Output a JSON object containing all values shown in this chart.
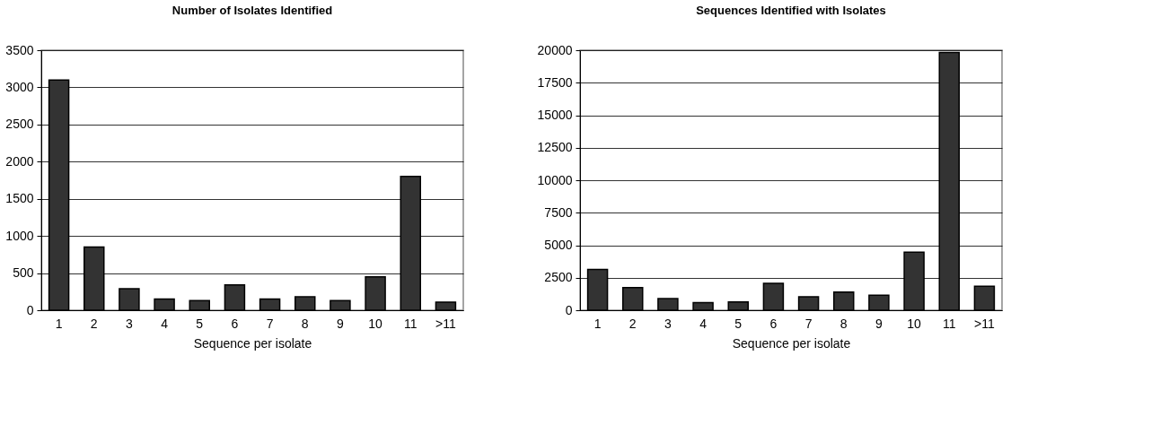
{
  "chart_data": [
    {
      "type": "bar",
      "title": "Number of Isolates Identified",
      "xlabel": "Sequence per isolate",
      "categories": [
        "1",
        "2",
        "3",
        "4",
        "5",
        "6",
        "7",
        "8",
        "9",
        "10",
        "11",
        ">11"
      ],
      "values": [
        3100,
        850,
        290,
        150,
        130,
        340,
        150,
        180,
        130,
        450,
        1800,
        110
      ],
      "color": "#333333",
      "ylim": [
        0,
        3500
      ],
      "yticks": [
        0,
        500,
        1000,
        1500,
        2000,
        2500,
        3000,
        3500
      ],
      "grid": "y"
    },
    {
      "type": "bar",
      "title": "Sequences Identified with Isolates",
      "xlabel": "Sequence per isolate",
      "categories": [
        "1",
        "2",
        "3",
        "4",
        "5",
        "6",
        "7",
        "8",
        "9",
        "10",
        "11",
        ">11"
      ],
      "values": [
        3130,
        1740,
        890,
        590,
        640,
        2070,
        1040,
        1400,
        1160,
        4470,
        19830,
        1840
      ],
      "color": "#333333",
      "ylim": [
        0,
        20000
      ],
      "yticks": [
        0,
        2500,
        5000,
        7500,
        10000,
        12500,
        15000,
        17500,
        20000
      ],
      "grid": "y"
    }
  ]
}
